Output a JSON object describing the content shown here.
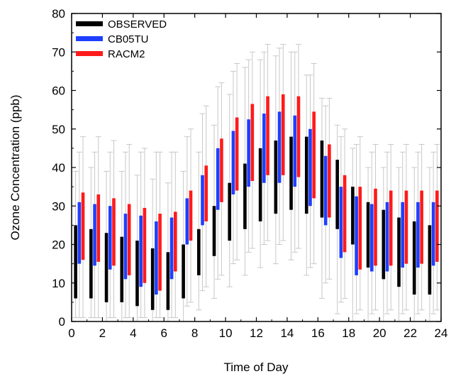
{
  "chart_data": {
    "type": "bar",
    "subtype": "floating-range-with-whiskers",
    "xlabel": "Time of Day",
    "ylabel": "Ozone Concentration (ppb)",
    "xlim": [
      0,
      24
    ],
    "ylim": [
      0,
      80
    ],
    "x_ticks": [
      0,
      2,
      4,
      6,
      8,
      10,
      12,
      14,
      16,
      18,
      20,
      22,
      24
    ],
    "y_ticks": [
      0,
      10,
      20,
      30,
      40,
      50,
      60,
      70,
      80
    ],
    "legend_position": "top-left",
    "hours": [
      1,
      2,
      3,
      4,
      5,
      6,
      7,
      8,
      9,
      10,
      11,
      12,
      13,
      14,
      15,
      16,
      17,
      18,
      19,
      20,
      21,
      22,
      23,
      24
    ],
    "series": [
      {
        "name": "OBSERVED",
        "color": "#000000",
        "low": [
          6,
          6,
          5,
          5,
          4,
          3,
          3,
          6,
          12,
          17,
          21,
          24,
          26,
          28,
          29,
          28,
          27,
          24,
          20,
          14,
          11,
          9,
          7,
          7
        ],
        "high": [
          25,
          24,
          23,
          22,
          21,
          19,
          18,
          20,
          24,
          30,
          36,
          41,
          45,
          47,
          48,
          48,
          47,
          42,
          35,
          31,
          29,
          27,
          26,
          25
        ],
        "whisker_low": [
          1,
          1,
          0,
          0,
          0,
          0,
          0,
          0,
          3,
          6,
          9,
          12,
          14,
          15,
          16,
          12,
          6,
          2,
          0,
          0,
          0,
          0,
          0,
          0
        ],
        "whisker_high": [
          39,
          40,
          39,
          39,
          38,
          37,
          36,
          39,
          44,
          51,
          59,
          66,
          68,
          69,
          70,
          64,
          58,
          51,
          45,
          40,
          40,
          40,
          40,
          40
        ]
      },
      {
        "name": "CB05TU",
        "color": "#1f3fff",
        "low": [
          15,
          14.5,
          13.5,
          11,
          9,
          7,
          11,
          20,
          25,
          29,
          33,
          35,
          36,
          36,
          35,
          30,
          25,
          16.5,
          12,
          13,
          13,
          14,
          14,
          14.5
        ],
        "high": [
          31,
          30.5,
          30,
          28,
          27.5,
          26,
          27,
          32,
          38,
          45,
          49.5,
          52.5,
          54,
          54.5,
          53.5,
          50,
          43,
          35,
          32.5,
          30.5,
          31,
          31,
          31,
          31
        ],
        "whisker_low": [
          1,
          1,
          1,
          1,
          1,
          1,
          1,
          4,
          8,
          11,
          15,
          18,
          20,
          20,
          18,
          14,
          10,
          5,
          2,
          2,
          2,
          2,
          2,
          2
        ],
        "whisker_high": [
          44,
          44,
          44,
          44,
          44,
          44,
          44,
          48,
          54,
          61,
          65,
          68,
          70,
          71,
          70,
          64,
          56,
          48,
          46,
          44,
          44,
          44,
          44,
          44
        ]
      },
      {
        "name": "RACM2",
        "color": "#ff1a1a",
        "low": [
          16,
          15.5,
          14.5,
          12,
          10,
          8,
          13,
          21,
          26,
          31,
          34,
          36.5,
          38,
          38,
          37.5,
          32,
          27,
          18,
          13.5,
          14.5,
          14.5,
          15,
          15,
          15.5
        ],
        "high": [
          33.5,
          33,
          32,
          30.5,
          29.5,
          28,
          28.5,
          34,
          40.5,
          47.5,
          53,
          56.5,
          58.5,
          59,
          58.5,
          54.5,
          46,
          38,
          35,
          34.5,
          34,
          34,
          34,
          34
        ],
        "whisker_low": [
          1,
          1,
          1,
          1,
          1,
          1,
          1,
          5,
          9,
          12,
          16,
          19,
          21,
          21,
          19,
          15,
          11,
          6,
          3,
          3,
          3,
          3,
          3,
          3
        ],
        "whisker_high": [
          48,
          48,
          47,
          46,
          45,
          44,
          44,
          50,
          56,
          62,
          67,
          70,
          72,
          72,
          72,
          67,
          58,
          50,
          48,
          46,
          46,
          46,
          46,
          46
        ]
      }
    ]
  }
}
